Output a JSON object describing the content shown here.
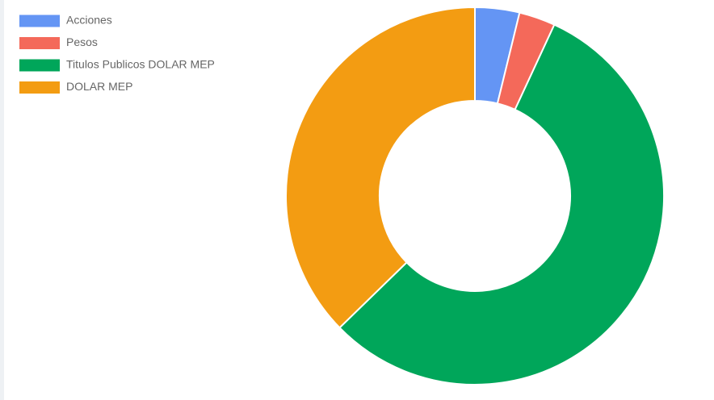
{
  "chart_data": {
    "type": "doughnut",
    "categories": [
      "Acciones",
      "Pesos",
      "Titulos Publicos DOLAR MEP",
      "DOLAR MEP"
    ],
    "values": [
      3.8,
      3.1,
      55.8,
      37.3
    ],
    "colors": [
      "#6495f4",
      "#f4695a",
      "#00a65a",
      "#f39c12"
    ],
    "legend": "top-left"
  }
}
